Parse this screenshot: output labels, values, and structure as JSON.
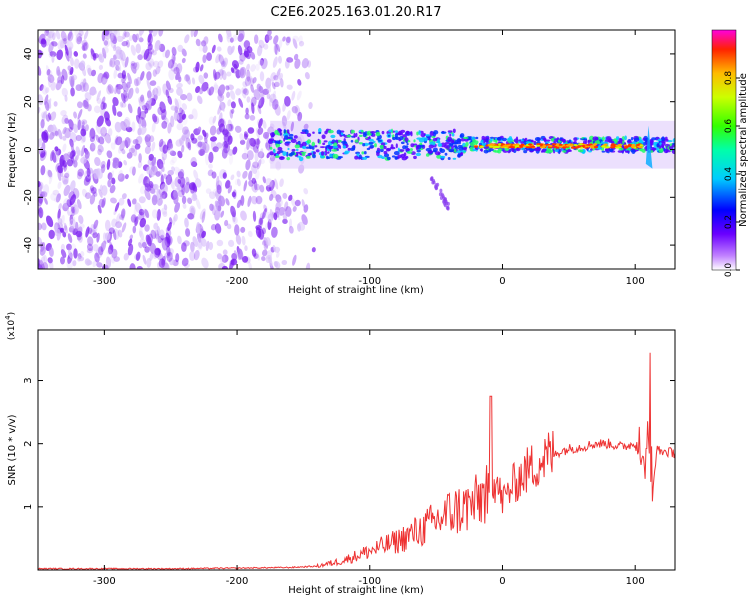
{
  "figure": {
    "title": "C2E6.2025.163.01.20.R17"
  },
  "chart_data": [
    {
      "type": "heatmap",
      "title": "C2E6.2025.163.01.20.R17",
      "xlabel": "Height of straight line (km)",
      "ylabel": "Frequency (Hz)",
      "xlim": [
        -350,
        130
      ],
      "ylim": [
        -50,
        50
      ],
      "xticks": [
        -300,
        -200,
        -100,
        0,
        100
      ],
      "yticks": [
        -40,
        -20,
        0,
        20,
        40
      ],
      "colorbar": {
        "label": "Normalized spectral amplitude",
        "range": [
          0,
          1
        ],
        "ticks": [
          "0.0",
          "0.2",
          "0.4",
          "0.6",
          "0.8"
        ]
      },
      "regions": [
        {
          "name": "broadband noise",
          "x": [
            -350,
            -140
          ],
          "y": [
            -50,
            50
          ],
          "amplitude": 0.2
        },
        {
          "name": "signal band",
          "x": [
            -175,
            130
          ],
          "y": [
            -5,
            10
          ],
          "amplitude": 0.45
        },
        {
          "name": "strong narrow line",
          "x": [
            -20,
            105
          ],
          "y": [
            0,
            3
          ],
          "amplitude": 0.95
        },
        {
          "name": "weak tail",
          "x": [
            -55,
            -40
          ],
          "y": [
            -25,
            -10
          ],
          "amplitude": 0.2
        }
      ]
    },
    {
      "type": "line",
      "xlabel": "Height of straight line (km)",
      "ylabel": "SNR (10 * v/v)",
      "y_multiplier": "(x10",
      "y_multiplier_exp": "4",
      "xlim": [
        -350,
        130
      ],
      "ylim": [
        0,
        3.8
      ],
      "xticks": [
        -300,
        -200,
        -100,
        0,
        100
      ],
      "yticks": [
        1,
        2,
        3
      ],
      "color": "#ee3333",
      "series": [
        {
          "x": [
            -350,
            -300,
            -250,
            -200,
            -160,
            -140,
            -120,
            -100,
            -80,
            -60,
            -40,
            -20,
            -10,
            -5,
            0,
            10,
            20,
            30,
            40,
            50,
            60,
            70,
            80,
            90,
            100,
            105,
            110,
            113,
            116,
            120,
            130
          ],
          "y": [
            0.02,
            0.02,
            0.02,
            0.03,
            0.04,
            0.06,
            0.15,
            0.3,
            0.45,
            0.65,
            0.9,
            1.05,
            1.3,
            1.4,
            1.1,
            1.4,
            1.6,
            1.75,
            1.85,
            1.92,
            1.95,
            2.0,
            2.0,
            1.95,
            2.0,
            1.7,
            1.95,
            1.1,
            1.9,
            1.88,
            1.85
          ]
        }
      ]
    }
  ]
}
